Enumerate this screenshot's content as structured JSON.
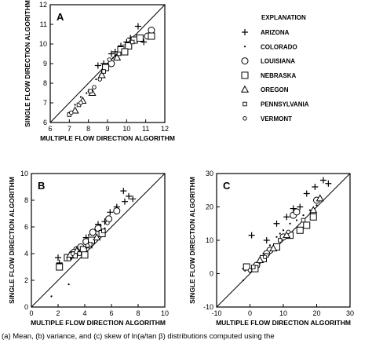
{
  "caption": "(a) Mean, (b) variance, and (c) skew of ln(a/tan β) distributions computed using the",
  "legend": {
    "title": "EXPLANATION",
    "entries": [
      {
        "label": "ARIZONA",
        "marker": "plus"
      },
      {
        "label": "COLORADO",
        "marker": "dot"
      },
      {
        "label": "LOUISIANA",
        "marker": "circle"
      },
      {
        "label": "NEBRASKA",
        "marker": "square"
      },
      {
        "label": "OREGON",
        "marker": "triangle"
      },
      {
        "label": "PENNSYLVANIA",
        "marker": "small-square"
      },
      {
        "label": "VERMONT",
        "marker": "small-circle"
      }
    ]
  },
  "chart_data": [
    {
      "type": "scatter",
      "panel_label": "A",
      "xlabel": "MULTIPLE FLOW DIRECTION ALGORITHM",
      "ylabel": "SINGLE FLOW DIRECTION ALGORITHM",
      "xlim": [
        6,
        12
      ],
      "ylim": [
        6,
        12
      ],
      "xticks": [
        "6",
        "7",
        "8",
        "9",
        "10",
        "11",
        "12"
      ],
      "yticks": [
        "6",
        "7",
        "8",
        "9",
        "10",
        "11",
        "12"
      ],
      "reference_line": "1:1",
      "series": [
        {
          "marker": "plus",
          "points": [
            [
              8.5,
              8.9
            ],
            [
              9.4,
              9.6
            ],
            [
              9.7,
              9.9
            ],
            [
              10.2,
              10.3
            ],
            [
              10.6,
              10.9
            ],
            [
              10.9,
              10.1
            ],
            [
              11.3,
              10.5
            ],
            [
              10.0,
              10.1
            ],
            [
              8.8,
              9.0
            ],
            [
              9.2,
              9.5
            ]
          ]
        },
        {
          "marker": "dot",
          "points": [
            [
              7.0,
              6.5
            ],
            [
              7.3,
              6.9
            ],
            [
              7.6,
              7.3
            ],
            [
              8.0,
              7.6
            ],
            [
              8.4,
              8.2
            ],
            [
              8.7,
              8.6
            ],
            [
              9.0,
              9.0
            ],
            [
              9.3,
              9.3
            ],
            [
              9.6,
              9.7
            ],
            [
              10.1,
              10.0
            ],
            [
              10.4,
              10.3
            ],
            [
              9.4,
              9.4
            ],
            [
              8.6,
              8.4
            ],
            [
              7.9,
              7.5
            ]
          ]
        },
        {
          "marker": "circle",
          "points": [
            [
              9.2,
              9.0
            ],
            [
              9.9,
              9.8
            ],
            [
              10.5,
              10.3
            ],
            [
              11.1,
              10.4
            ],
            [
              11.3,
              10.7
            ]
          ]
        },
        {
          "marker": "square",
          "points": [
            [
              8.9,
              8.8
            ],
            [
              9.7,
              9.7
            ],
            [
              10.1,
              9.9
            ],
            [
              10.4,
              10.2
            ],
            [
              10.7,
              10.3
            ],
            [
              11.3,
              10.4
            ],
            [
              9.9,
              9.6
            ]
          ]
        },
        {
          "marker": "triangle",
          "points": [
            [
              7.3,
              6.6
            ],
            [
              7.7,
              7.1
            ],
            [
              8.2,
              7.5
            ],
            [
              8.7,
              8.4
            ],
            [
              9.5,
              9.3
            ]
          ]
        },
        {
          "marker": "small-square",
          "points": [
            [
              7.0,
              6.4
            ],
            [
              7.5,
              6.9
            ],
            [
              8.1,
              7.6
            ],
            [
              8.8,
              8.6
            ],
            [
              9.6,
              9.5
            ],
            [
              10.3,
              10.1
            ]
          ]
        },
        {
          "marker": "small-circle",
          "points": [
            [
              7.1,
              6.5
            ],
            [
              7.6,
              7.0
            ],
            [
              8.3,
              7.8
            ],
            [
              8.6,
              8.2
            ],
            [
              9.1,
              9.2
            ]
          ]
        }
      ]
    },
    {
      "type": "scatter",
      "panel_label": "B",
      "xlabel": "MULTIPLE FLOW DIRECTION ALGORITHM",
      "ylabel": "SINGLE FLOW DIRECTION ALGORITHM",
      "xlim": [
        0,
        10
      ],
      "ylim": [
        0,
        10
      ],
      "xticks": [
        "0",
        "2",
        "4",
        "6",
        "8",
        "10"
      ],
      "yticks": [
        "0",
        "2",
        "4",
        "6",
        "8",
        "10"
      ],
      "reference_line": "1:1",
      "series": [
        {
          "marker": "plus",
          "points": [
            [
              2.0,
              3.7
            ],
            [
              2.1,
              3.3
            ],
            [
              4.1,
              5.2
            ],
            [
              5.0,
              6.2
            ],
            [
              5.9,
              7.1
            ],
            [
              6.4,
              7.5
            ],
            [
              7.3,
              8.3
            ],
            [
              7.6,
              8.1
            ],
            [
              7.0,
              7.9
            ],
            [
              6.9,
              8.7
            ],
            [
              5.5,
              6.4
            ]
          ]
        },
        {
          "marker": "dot",
          "points": [
            [
              1.5,
              0.8
            ],
            [
              2.8,
              1.7
            ],
            [
              3.0,
              3.6
            ],
            [
              3.5,
              4.2
            ],
            [
              3.9,
              4.9
            ],
            [
              4.3,
              5.4
            ],
            [
              4.8,
              5.8
            ],
            [
              5.2,
              6.1
            ],
            [
              5.8,
              6.6
            ],
            [
              6.3,
              7.0
            ],
            [
              4.0,
              4.5
            ],
            [
              3.3,
              3.8
            ],
            [
              5.5,
              5.9
            ],
            [
              4.6,
              5.1
            ]
          ]
        },
        {
          "marker": "circle",
          "points": [
            [
              3.4,
              4.3
            ],
            [
              3.7,
              4.5
            ],
            [
              4.1,
              4.9
            ],
            [
              4.6,
              5.6
            ],
            [
              5.0,
              5.9
            ],
            [
              5.8,
              6.6
            ],
            [
              6.4,
              7.2
            ],
            [
              3.2,
              4.1
            ]
          ]
        },
        {
          "marker": "square",
          "points": [
            [
              2.1,
              3.0
            ],
            [
              2.7,
              3.7
            ],
            [
              3.2,
              3.9
            ],
            [
              3.9,
              4.3
            ],
            [
              4.5,
              5.0
            ],
            [
              5.3,
              5.5
            ],
            [
              4.0,
              3.9
            ]
          ]
        },
        {
          "marker": "triangle",
          "points": [
            [
              2.9,
              3.9
            ],
            [
              3.4,
              4.2
            ],
            [
              4.3,
              4.6
            ],
            [
              4.9,
              5.2
            ]
          ]
        },
        {
          "marker": "small-square",
          "points": [
            [
              2.8,
              3.6
            ],
            [
              3.6,
              4.0
            ],
            [
              4.4,
              4.7
            ],
            [
              5.4,
              5.7
            ]
          ]
        },
        {
          "marker": "small-circle",
          "points": [
            [
              3.1,
              4.0
            ],
            [
              4.2,
              4.6
            ],
            [
              5.7,
              6.3
            ]
          ]
        }
      ]
    },
    {
      "type": "scatter",
      "panel_label": "C",
      "xlabel": "MULTIPLE FLOW DIRECTION ALGORITHM",
      "ylabel": "SINGLE FLOW DIRECTION ALGORITHM",
      "xlim": [
        -10,
        30
      ],
      "ylim": [
        -10,
        30
      ],
      "xticks": [
        "-10",
        "0",
        "10",
        "20",
        "30"
      ],
      "yticks": [
        "-10",
        "0",
        "10",
        "20",
        "30"
      ],
      "reference_line": "1:1",
      "series": [
        {
          "marker": "plus",
          "points": [
            [
              0.5,
              11.5
            ],
            [
              -1.5,
              1.5
            ],
            [
              5.0,
              10.0
            ],
            [
              8.0,
              15.0
            ],
            [
              11.0,
              17.0
            ],
            [
              13.0,
              19.5
            ],
            [
              17.0,
              24.0
            ],
            [
              19.5,
              26.0
            ],
            [
              22.0,
              28.0
            ],
            [
              23.5,
              27.0
            ],
            [
              15.0,
              20.0
            ]
          ]
        },
        {
          "marker": "dot",
          "points": [
            [
              -2.0,
              -2.0
            ],
            [
              0.0,
              0.5
            ],
            [
              2.0,
              3.0
            ],
            [
              4.0,
              6.0
            ],
            [
              6.0,
              8.5
            ],
            [
              8.0,
              11.0
            ],
            [
              10.0,
              13.0
            ],
            [
              12.0,
              15.0
            ],
            [
              14.0,
              16.0
            ],
            [
              16.0,
              17.5
            ],
            [
              18.0,
              19.0
            ],
            [
              20.0,
              20.5
            ],
            [
              9.0,
              12.0
            ]
          ]
        },
        {
          "marker": "circle",
          "points": [
            [
              2.0,
              2.5
            ],
            [
              6.0,
              7.0
            ],
            [
              10.0,
              11.0
            ],
            [
              13.0,
              17.5
            ],
            [
              14.0,
              18.5
            ],
            [
              20.0,
              22.0
            ],
            [
              5.0,
              6.0
            ]
          ]
        },
        {
          "marker": "square",
          "points": [
            [
              -1.0,
              2.0
            ],
            [
              1.5,
              1.5
            ],
            [
              4.0,
              4.5
            ],
            [
              8.0,
              8.0
            ],
            [
              12.0,
              11.5
            ],
            [
              17.0,
              14.5
            ],
            [
              19.0,
              17.0
            ],
            [
              15.0,
              13.0
            ]
          ]
        },
        {
          "marker": "triangle",
          "points": [
            [
              3.0,
              4.0
            ],
            [
              7.0,
              7.5
            ],
            [
              11.0,
              11.5
            ],
            [
              19.0,
              19.0
            ],
            [
              21.0,
              22.5
            ]
          ]
        },
        {
          "marker": "small-square",
          "points": [
            [
              1.0,
              2.0
            ],
            [
              5.0,
              5.5
            ],
            [
              9.0,
              10.0
            ],
            [
              16.0,
              16.0
            ]
          ]
        },
        {
          "marker": "small-circle",
          "points": [
            [
              0.0,
              1.0
            ],
            [
              4.5,
              5.0
            ],
            [
              11.5,
              12.5
            ]
          ]
        }
      ]
    }
  ]
}
